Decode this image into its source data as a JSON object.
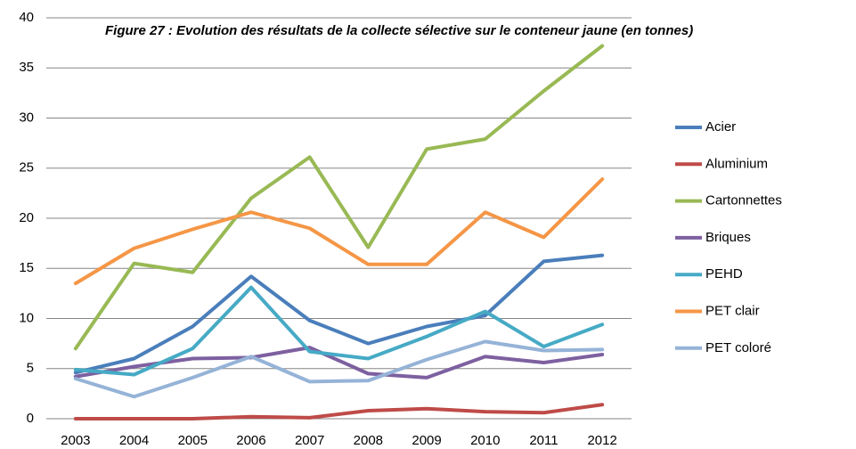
{
  "chart_data": {
    "type": "line",
    "title": "Figure 27 : Evolution des résultats de la collecte sélective sur le conteneur jaune (en tonnes)",
    "categories": [
      "2003",
      "2004",
      "2005",
      "2006",
      "2007",
      "2008",
      "2009",
      "2010",
      "2011",
      "2012"
    ],
    "series": [
      {
        "name": "Acier",
        "color": "#4a7ebb",
        "values": [
          4.6,
          6.0,
          9.2,
          14.2,
          9.8,
          7.5,
          9.2,
          10.3,
          15.7,
          16.3
        ]
      },
      {
        "name": "Aluminium",
        "color": "#be4b48",
        "values": [
          0,
          0,
          0,
          0.2,
          0.1,
          0.8,
          1.0,
          0.7,
          0.6,
          1.4
        ]
      },
      {
        "name": "Cartonnettes",
        "color": "#98b954",
        "values": [
          7.0,
          15.5,
          14.6,
          22.0,
          26.1,
          17.1,
          26.9,
          27.9,
          32.7,
          37.2
        ]
      },
      {
        "name": "Briques",
        "color": "#7d60a0",
        "values": [
          4.2,
          5.2,
          6.0,
          6.1,
          7.1,
          4.5,
          4.1,
          6.2,
          5.6,
          6.4
        ]
      },
      {
        "name": "PEHD",
        "color": "#46aac5",
        "values": [
          4.9,
          4.4,
          7.0,
          13.1,
          6.7,
          6.0,
          8.2,
          10.7,
          7.2,
          9.4
        ]
      },
      {
        "name": "PET clair",
        "color": "#f59646",
        "values": [
          13.5,
          17.0,
          18.9,
          20.6,
          19.0,
          15.4,
          15.4,
          20.6,
          18.1,
          23.9
        ]
      },
      {
        "name": "PET coloré",
        "color": "#95b3d7",
        "values": [
          4.0,
          2.2,
          4.1,
          6.2,
          3.7,
          3.8,
          5.9,
          7.7,
          6.8,
          6.9
        ]
      }
    ],
    "ylim": [
      0,
      40
    ],
    "yticks": [
      0,
      5,
      10,
      15,
      20,
      25,
      30,
      35,
      40
    ],
    "grid": true,
    "legend": "right"
  }
}
